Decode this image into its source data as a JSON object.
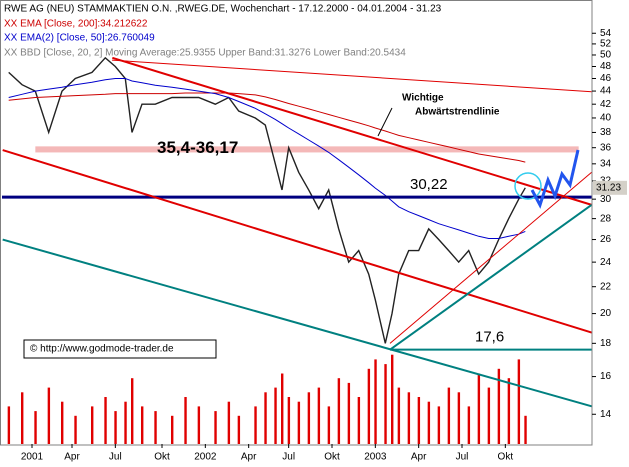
{
  "chart_data": {
    "type": "line",
    "title": "RWE AG (NEU) STAMMAKTIEN O.N. ,RWEG.DE, Wochenchart - 17.12.2000 - 04.01.2004 - 31.23",
    "legend_extra": [
      "XX BBD [Close, 20, 2] Moving Average:25.9355 Upper Band:31.3276 Lower Band:20.5434"
    ],
    "log_y": true,
    "ylim": [
      12.6,
      57
    ],
    "yticks": [
      14,
      16,
      18,
      20,
      22,
      24,
      26,
      28,
      30,
      32,
      34,
      36,
      38,
      40,
      42,
      44,
      46,
      48,
      50,
      52,
      54
    ],
    "xlim": [
      -2,
      175
    ],
    "xticks": [
      {
        "value": 7,
        "label": "2001"
      },
      {
        "value": 19,
        "label": "Apr"
      },
      {
        "value": 32,
        "label": "Jul"
      },
      {
        "value": 46,
        "label": "Okt"
      },
      {
        "value": 59,
        "label": "2002"
      },
      {
        "value": 72,
        "label": "Apr"
      },
      {
        "value": 84,
        "label": "Jul"
      },
      {
        "value": 97,
        "label": "Okt"
      },
      {
        "value": 110,
        "label": "2003"
      },
      {
        "value": 123,
        "label": "Apr"
      },
      {
        "value": 136,
        "label": "Jul"
      },
      {
        "value": 149,
        "label": "Okt"
      }
    ],
    "x": [
      0,
      4,
      8,
      12,
      16,
      20,
      25,
      29,
      32,
      35,
      37,
      40,
      44,
      49,
      53,
      57,
      62,
      66,
      69,
      74,
      77,
      80,
      82,
      84,
      87,
      90,
      93,
      96,
      99,
      102,
      105,
      108,
      110,
      113,
      115,
      117,
      120,
      123,
      126,
      129,
      132,
      135,
      138,
      141,
      144,
      147,
      150,
      153,
      155
    ],
    "series": [
      {
        "color": "#222222",
        "values": [
          47,
          45,
          44,
          38,
          44,
          46,
          47,
          49.5,
          48,
          46,
          38,
          42,
          42,
          43,
          43,
          43,
          42,
          43,
          41,
          40,
          39,
          34,
          31,
          36,
          33,
          31,
          29,
          31,
          27,
          24,
          25,
          23,
          21,
          18,
          20,
          23,
          25,
          25,
          27,
          26,
          25,
          24,
          25,
          23,
          24,
          26,
          28,
          30,
          31.23
        ]
      },
      {
        "name": "XX EMA [Close, 200]:34.212622",
        "color": "#cc0000",
        "values": [
          42.6,
          42.8,
          43,
          43.1,
          43.2,
          43.3,
          43.4,
          43.5,
          43.6,
          43.6,
          43.6,
          43.6,
          43.6,
          43.6,
          43.7,
          43.7,
          43.7,
          43.7,
          43.6,
          43.4,
          43.1,
          42.7,
          42.4,
          42.1,
          41.7,
          41.3,
          40.9,
          40.5,
          40.1,
          39.7,
          39.3,
          38.9,
          38.6,
          38.2,
          37.9,
          37.6,
          37.3,
          37,
          36.7,
          36.4,
          36.1,
          35.8,
          35.5,
          35.2,
          35,
          34.8,
          34.6,
          34.4,
          34.21
        ]
      },
      {
        "name": "XX EMA(2) [Close, 50]:26.760049",
        "color": "#0000cc",
        "values": [
          43,
          43.5,
          44,
          44.3,
          44.6,
          45,
          45.4,
          45.8,
          46,
          46,
          45.6,
          45.3,
          44.9,
          44.6,
          44.3,
          44,
          43.6,
          43,
          42.4,
          41.4,
          40.6,
          39.8,
          39.2,
          38.6,
          37.8,
          37,
          36.2,
          35.4,
          34.5,
          33.6,
          32.7,
          31.8,
          31.2,
          30.4,
          29.8,
          29.2,
          28.7,
          28.3,
          27.9,
          27.5,
          27.2,
          26.9,
          26.6,
          26.3,
          26.1,
          26.1,
          26.3,
          26.5,
          26.76
        ]
      },
      {
        "axis": "volume",
        "color": "#e00000",
        "values": [
          40,
          55,
          35,
          60,
          45,
          30,
          40,
          50,
          35,
          45,
          70,
          40,
          35,
          30,
          50,
          40,
          35,
          45,
          30,
          40,
          55,
          60,
          75,
          50,
          45,
          55,
          60,
          40,
          70,
          65,
          50,
          80,
          90,
          85,
          95,
          60,
          55,
          50,
          45,
          40,
          60,
          55,
          40,
          75,
          60,
          80,
          70,
          90,
          30
        ]
      }
    ],
    "vlim": [
      0,
      100
    ],
    "last_value": 31.23,
    "band": {
      "from": 35.4,
      "to": 36.17,
      "label": "35,4-36,17",
      "color": "#f4b8b8",
      "x": [
        8,
        171
      ]
    },
    "hlines": [
      {
        "value": 30.22,
        "label": "30,22",
        "color": "#000080",
        "x": [
          -2,
          175
        ]
      },
      {
        "value": 17.6,
        "label": "17,6",
        "color": "#008080",
        "x": [
          114.4,
          175
        ]
      }
    ],
    "lines": [
      {
        "color": "#e00000",
        "width": 2,
        "points": [
          [
            31.1,
            49.5
          ],
          [
            174.9,
            29.4
          ]
        ]
      },
      {
        "color": "#e00000",
        "width": 1,
        "points": [
          [
            31,
            49.1
          ],
          [
            174.9,
            43.9
          ]
        ]
      },
      {
        "color": "#e00000",
        "width": 2,
        "points": [
          [
            -1.8,
            35.7
          ],
          [
            174.9,
            18.7
          ]
        ]
      },
      {
        "color": "#e00000",
        "width": 1,
        "points": [
          [
            114.4,
            18
          ],
          [
            174.9,
            33
          ]
        ]
      },
      {
        "color": "#008080",
        "width": 2,
        "points": [
          [
            -1.8,
            26
          ],
          [
            174.9,
            14.4
          ]
        ]
      },
      {
        "color": "#008080",
        "width": 2,
        "points": [
          [
            114.4,
            17.6
          ],
          [
            174.9,
            29.4
          ]
        ]
      }
    ],
    "annotation": [
      "Wichtige",
      "Abwärtstrendlinie"
    ],
    "copyright": "© http://www.godmode-trader.de"
  }
}
